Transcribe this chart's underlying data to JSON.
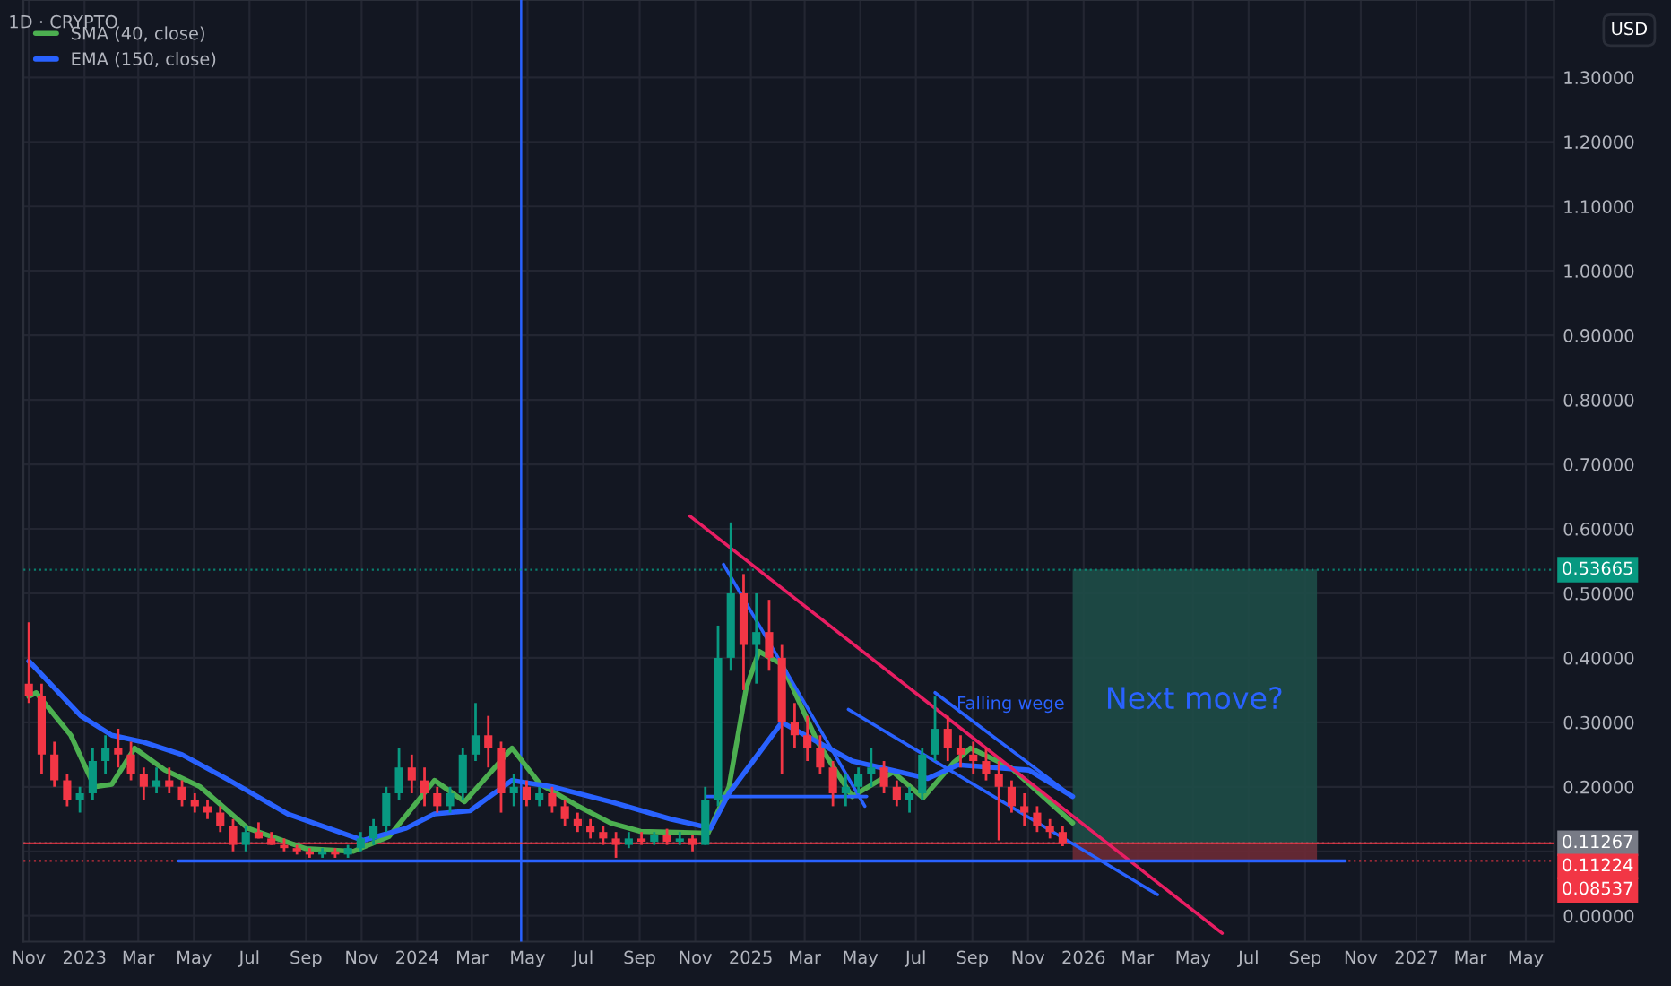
{
  "chart_data": {
    "type": "candlestick",
    "title": "1D · CRYPTO",
    "ylabel": "USD",
    "grid": true,
    "legend": "top left",
    "xlim": [
      "2022-10-26",
      "2027-06-01"
    ],
    "ylim": [
      -0.04,
      1.42
    ],
    "xticks": [
      {
        "value": "2022-11-01",
        "label": "Nov"
      },
      {
        "value": "2023-01-01",
        "label": "2023"
      },
      {
        "value": "2023-03-01",
        "label": "Mar"
      },
      {
        "value": "2023-05-01",
        "label": "May"
      },
      {
        "value": "2023-07-01",
        "label": "Jul"
      },
      {
        "value": "2023-09-01",
        "label": "Sep"
      },
      {
        "value": "2023-11-01",
        "label": "Nov"
      },
      {
        "value": "2024-01-01",
        "label": "2024"
      },
      {
        "value": "2024-03-01",
        "label": "Mar"
      },
      {
        "value": "2024-05-01",
        "label": "May"
      },
      {
        "value": "2024-07-01",
        "label": "Jul"
      },
      {
        "value": "2024-09-01",
        "label": "Sep"
      },
      {
        "value": "2024-11-01",
        "label": "Nov"
      },
      {
        "value": "2025-01-01",
        "label": "2025"
      },
      {
        "value": "2025-03-01",
        "label": "Mar"
      },
      {
        "value": "2025-05-01",
        "label": "May"
      },
      {
        "value": "2025-07-01",
        "label": "Jul"
      },
      {
        "value": "2025-09-01",
        "label": "Sep"
      },
      {
        "value": "2025-11-01",
        "label": "Nov"
      },
      {
        "value": "2026-01-01",
        "label": "2026"
      },
      {
        "value": "2026-03-01",
        "label": "Mar"
      },
      {
        "value": "2026-05-01",
        "label": "May"
      },
      {
        "value": "2026-07-01",
        "label": "Jul"
      },
      {
        "value": "2026-09-01",
        "label": "Sep"
      },
      {
        "value": "2026-11-01",
        "label": "Nov"
      },
      {
        "value": "2027-01-01",
        "label": "2027"
      },
      {
        "value": "2027-03-01",
        "label": "Mar"
      },
      {
        "value": "2027-05-01",
        "label": "May"
      }
    ],
    "yticks": [
      {
        "value": 0,
        "label": "0.00000"
      },
      {
        "value": 0.1,
        "label": null
      },
      {
        "value": 0.2,
        "label": "0.20000"
      },
      {
        "value": 0.3,
        "label": "0.30000"
      },
      {
        "value": 0.4,
        "label": "0.40000"
      },
      {
        "value": 0.5,
        "label": "0.50000"
      },
      {
        "value": 0.6,
        "label": "0.60000"
      },
      {
        "value": 0.7,
        "label": "0.70000"
      },
      {
        "value": 0.8,
        "label": "0.80000"
      },
      {
        "value": 0.9,
        "label": "0.90000"
      },
      {
        "value": 1.0,
        "label": "1.00000"
      },
      {
        "value": 1.1,
        "label": "1.10000"
      },
      {
        "value": 1.2,
        "label": "1.20000"
      },
      {
        "value": 1.3,
        "label": "1.30000"
      }
    ],
    "ref_lines": [
      {
        "axis": "x",
        "value": "2024-04-24",
        "color": "#2962ff"
      },
      {
        "axis": "y",
        "value": 0.53665,
        "label": "0.53665",
        "color": "#089981",
        "line_style": "dotted"
      },
      {
        "axis": "y",
        "value": 0.11267,
        "label": "0.11267",
        "color": "#787b86",
        "line_style": "dotted"
      },
      {
        "axis": "y",
        "value": 0.11224,
        "label": "0.11224",
        "color": "#f23645"
      },
      {
        "axis": "y",
        "value": 0.08537,
        "label": "0.08537",
        "color": "#f23645",
        "line_style": "dotted"
      }
    ],
    "annotations": [
      "Falling wege",
      "Next move?"
    ],
    "series": [
      {
        "x": [
          "2022-11-01",
          "2022-11-15",
          "2022-11-29",
          "2022-12-13",
          "2022-12-27",
          "2023-01-10",
          "2023-01-24",
          "2023-02-07",
          "2023-02-21",
          "2023-03-07",
          "2023-03-21",
          "2023-04-04",
          "2023-04-18",
          "2023-05-02",
          "2023-05-16",
          "2023-05-30",
          "2023-06-13",
          "2023-06-27",
          "2023-07-11",
          "2023-07-25",
          "2023-08-08",
          "2023-08-22",
          "2023-09-05",
          "2023-09-19",
          "2023-10-03",
          "2023-10-17",
          "2023-10-31",
          "2023-11-14",
          "2023-11-28",
          "2023-12-12",
          "2023-12-26",
          "2024-01-09",
          "2024-01-23",
          "2024-02-06",
          "2024-02-20",
          "2024-03-05",
          "2024-03-19",
          "2024-04-02",
          "2024-04-16",
          "2024-04-30",
          "2024-05-14",
          "2024-05-28",
          "2024-06-11",
          "2024-06-25",
          "2024-07-09",
          "2024-07-23",
          "2024-08-06",
          "2024-08-20",
          "2024-09-03",
          "2024-09-17",
          "2024-10-01",
          "2024-10-15",
          "2024-10-29",
          "2024-11-12",
          "2024-11-26",
          "2024-12-10",
          "2024-12-24",
          "2025-01-07",
          "2025-01-21",
          "2025-02-04",
          "2025-02-18",
          "2025-03-04",
          "2025-03-18",
          "2025-04-01",
          "2025-04-15",
          "2025-04-29",
          "2025-05-13",
          "2025-05-27",
          "2025-06-10",
          "2025-06-24",
          "2025-07-08",
          "2025-07-22",
          "2025-08-05",
          "2025-08-19",
          "2025-09-02",
          "2025-09-16",
          "2025-09-30",
          "2025-10-14",
          "2025-10-28",
          "2025-11-11",
          "2025-11-25",
          "2025-12-09"
        ],
        "ohlc": [
          [
            0.36,
            0.455,
            0.33,
            0.34
          ],
          [
            0.34,
            0.36,
            0.22,
            0.25
          ],
          [
            0.25,
            0.27,
            0.2,
            0.21
          ],
          [
            0.21,
            0.22,
            0.17,
            0.18
          ],
          [
            0.18,
            0.2,
            0.16,
            0.19
          ],
          [
            0.19,
            0.26,
            0.18,
            0.24
          ],
          [
            0.24,
            0.28,
            0.22,
            0.26
          ],
          [
            0.26,
            0.29,
            0.23,
            0.25
          ],
          [
            0.25,
            0.27,
            0.21,
            0.22
          ],
          [
            0.22,
            0.23,
            0.18,
            0.2
          ],
          [
            0.2,
            0.23,
            0.19,
            0.21
          ],
          [
            0.21,
            0.23,
            0.19,
            0.2
          ],
          [
            0.2,
            0.21,
            0.17,
            0.18
          ],
          [
            0.18,
            0.19,
            0.16,
            0.17
          ],
          [
            0.17,
            0.18,
            0.15,
            0.16
          ],
          [
            0.16,
            0.17,
            0.13,
            0.14
          ],
          [
            0.14,
            0.15,
            0.1,
            0.11
          ],
          [
            0.11,
            0.14,
            0.1,
            0.13
          ],
          [
            0.13,
            0.145,
            0.12,
            0.12
          ],
          [
            0.12,
            0.13,
            0.11,
            0.11
          ],
          [
            0.11,
            0.12,
            0.1,
            0.105
          ],
          [
            0.105,
            0.11,
            0.095,
            0.1
          ],
          [
            0.1,
            0.105,
            0.09,
            0.095
          ],
          [
            0.095,
            0.105,
            0.09,
            0.1
          ],
          [
            0.1,
            0.105,
            0.09,
            0.095
          ],
          [
            0.095,
            0.11,
            0.09,
            0.105
          ],
          [
            0.105,
            0.13,
            0.1,
            0.12
          ],
          [
            0.12,
            0.15,
            0.11,
            0.14
          ],
          [
            0.14,
            0.2,
            0.13,
            0.19
          ],
          [
            0.19,
            0.26,
            0.18,
            0.23
          ],
          [
            0.23,
            0.25,
            0.19,
            0.21
          ],
          [
            0.21,
            0.23,
            0.17,
            0.19
          ],
          [
            0.19,
            0.2,
            0.16,
            0.17
          ],
          [
            0.17,
            0.2,
            0.16,
            0.19
          ],
          [
            0.19,
            0.26,
            0.18,
            0.25
          ],
          [
            0.25,
            0.33,
            0.24,
            0.28
          ],
          [
            0.28,
            0.31,
            0.23,
            0.26
          ],
          [
            0.26,
            0.27,
            0.16,
            0.19
          ],
          [
            0.19,
            0.22,
            0.17,
            0.2
          ],
          [
            0.2,
            0.21,
            0.17,
            0.18
          ],
          [
            0.18,
            0.2,
            0.17,
            0.19
          ],
          [
            0.19,
            0.2,
            0.16,
            0.17
          ],
          [
            0.17,
            0.18,
            0.14,
            0.15
          ],
          [
            0.15,
            0.16,
            0.13,
            0.14
          ],
          [
            0.14,
            0.15,
            0.12,
            0.13
          ],
          [
            0.13,
            0.14,
            0.11,
            0.12
          ],
          [
            0.12,
            0.13,
            0.09,
            0.11
          ],
          [
            0.11,
            0.13,
            0.105,
            0.12
          ],
          [
            0.12,
            0.13,
            0.11,
            0.115
          ],
          [
            0.115,
            0.13,
            0.11,
            0.125
          ],
          [
            0.125,
            0.135,
            0.11,
            0.115
          ],
          [
            0.115,
            0.13,
            0.11,
            0.12
          ],
          [
            0.12,
            0.125,
            0.1,
            0.11
          ],
          [
            0.11,
            0.2,
            0.11,
            0.18
          ],
          [
            0.18,
            0.45,
            0.17,
            0.4
          ],
          [
            0.4,
            0.61,
            0.38,
            0.5
          ],
          [
            0.5,
            0.53,
            0.35,
            0.42
          ],
          [
            0.42,
            0.5,
            0.36,
            0.44
          ],
          [
            0.44,
            0.49,
            0.38,
            0.4
          ],
          [
            0.4,
            0.42,
            0.22,
            0.3
          ],
          [
            0.3,
            0.33,
            0.26,
            0.28
          ],
          [
            0.28,
            0.31,
            0.24,
            0.26
          ],
          [
            0.26,
            0.28,
            0.22,
            0.23
          ],
          [
            0.23,
            0.24,
            0.17,
            0.19
          ],
          [
            0.19,
            0.22,
            0.17,
            0.2
          ],
          [
            0.2,
            0.23,
            0.19,
            0.22
          ],
          [
            0.22,
            0.26,
            0.2,
            0.23
          ],
          [
            0.23,
            0.24,
            0.19,
            0.2
          ],
          [
            0.2,
            0.21,
            0.17,
            0.18
          ],
          [
            0.18,
            0.2,
            0.16,
            0.19
          ],
          [
            0.19,
            0.26,
            0.18,
            0.25
          ],
          [
            0.25,
            0.34,
            0.24,
            0.29
          ],
          [
            0.29,
            0.31,
            0.24,
            0.26
          ],
          [
            0.26,
            0.28,
            0.23,
            0.25
          ],
          [
            0.25,
            0.27,
            0.22,
            0.24
          ],
          [
            0.24,
            0.26,
            0.21,
            0.22
          ],
          [
            0.22,
            0.24,
            0.117,
            0.2
          ],
          [
            0.2,
            0.21,
            0.16,
            0.17
          ],
          [
            0.17,
            0.19,
            0.14,
            0.16
          ],
          [
            0.16,
            0.17,
            0.13,
            0.14
          ],
          [
            0.14,
            0.15,
            0.12,
            0.13
          ],
          [
            0.13,
            0.14,
            0.108,
            0.11267
          ]
        ],
        "colors": [
          "#f23645",
          "#f23645",
          "#f23645",
          "#f23645",
          "#089981",
          "#089981",
          "#089981",
          "#f23645",
          "#f23645",
          "#f23645",
          "#089981",
          "#f23645",
          "#f23645",
          "#f23645",
          "#f23645",
          "#f23645",
          "#f23645",
          "#089981",
          "#f23645",
          "#f23645",
          "#f23645",
          "#f23645",
          "#f23645",
          "#089981",
          "#f23645",
          "#089981",
          "#089981",
          "#089981",
          "#089981",
          "#089981",
          "#f23645",
          "#f23645",
          "#f23645",
          "#089981",
          "#089981",
          "#089981",
          "#f23645",
          "#f23645",
          "#089981",
          "#f23645",
          "#089981",
          "#f23645",
          "#f23645",
          "#f23645",
          "#f23645",
          "#f23645",
          "#f23645",
          "#089981",
          "#f23645",
          "#089981",
          "#f23645",
          "#089981",
          "#f23645",
          "#089981",
          "#089981",
          "#089981",
          "#f23645",
          "#089981",
          "#f23645",
          "#f23645",
          "#f23645",
          "#f23645",
          "#f23645",
          "#f23645",
          "#089981",
          "#089981",
          "#089981",
          "#f23645",
          "#f23645",
          "#089981",
          "#089981",
          "#089981",
          "#f23645",
          "#f23645",
          "#f23645",
          "#f23645",
          "#f23645",
          "#f23645",
          "#f23645",
          "#f23645",
          "#f23645",
          "#f23645"
        ]
      },
      {
        "type": "line",
        "name": "SMA (40, close)",
        "color": "#4caf50",
        "x": [
          "2022-11-01",
          "2022-11-09",
          "2022-12-17",
          "2023-01-12",
          "2023-01-31",
          "2023-02-25",
          "2023-03-30",
          "2023-05-08",
          "2023-06-29",
          "2023-09-01",
          "2023-10-23",
          "2023-12-01",
          "2024-01-20",
          "2024-02-22",
          "2024-04-14",
          "2024-05-15",
          "2024-06-23",
          "2024-07-31",
          "2024-09-02",
          "2024-11-15",
          "2024-12-08",
          "2024-12-27",
          "2025-01-10",
          "2025-02-04",
          "2025-03-15",
          "2025-04-22",
          "2025-06-06",
          "2025-07-09",
          "2025-08-11",
          "2025-08-30",
          "2025-10-13",
          "2025-12-20"
        ],
        "values": [
          0.34,
          0.346,
          0.28,
          0.2,
          0.204,
          0.26,
          0.226,
          0.2,
          0.136,
          0.104,
          0.1,
          0.123,
          0.21,
          0.177,
          0.26,
          0.204,
          0.172,
          0.144,
          0.131,
          0.128,
          0.2,
          0.354,
          0.41,
          0.39,
          0.27,
          0.185,
          0.223,
          0.183,
          0.237,
          0.26,
          0.23,
          0.144
        ]
      },
      {
        "type": "line",
        "name": "EMA (150, close)",
        "color": "#2962ff",
        "x": [
          "2022-11-01",
          "2022-12-28",
          "2023-01-31",
          "2023-03-05",
          "2023-04-18",
          "2023-06-09",
          "2023-08-12",
          "2023-11-03",
          "2023-12-20",
          "2024-01-20",
          "2024-02-28",
          "2024-04-14",
          "2024-05-28",
          "2024-07-31",
          "2024-10-05",
          "2024-11-18",
          "2024-12-08",
          "2025-01-16",
          "2025-02-04",
          "2025-04-22",
          "2025-07-14",
          "2025-08-16",
          "2025-11-02",
          "2025-12-20"
        ],
        "values": [
          0.395,
          0.31,
          0.28,
          0.27,
          0.25,
          0.21,
          0.158,
          0.117,
          0.136,
          0.158,
          0.163,
          0.21,
          0.2,
          0.177,
          0.15,
          0.136,
          0.19,
          0.264,
          0.3,
          0.24,
          0.213,
          0.234,
          0.226,
          0.185
        ]
      },
      {
        "type": "line",
        "color": "#e91e63",
        "x": [
          "2024-10-26",
          "2026-06-02"
        ],
        "values": [
          0.62,
          -0.027
        ]
      },
      {
        "type": "line",
        "color": "#2962ff",
        "x": [
          "2025-07-22",
          "2025-12-20"
        ],
        "values": [
          0.346,
          0.185
        ]
      },
      {
        "type": "line",
        "color": "#2962ff",
        "x": [
          "2025-04-18",
          "2026-03-23"
        ],
        "values": [
          0.32,
          0.033
        ]
      },
      {
        "type": "line",
        "color": "#2962ff",
        "x": [
          "2024-12-02",
          "2025-05-06"
        ],
        "values": [
          0.545,
          0.17
        ]
      },
      {
        "type": "line",
        "color": "#2962ff",
        "x": [
          "2024-11-13",
          "2025-05-08"
        ],
        "values": [
          0.185,
          0.185
        ]
      },
      {
        "type": "line",
        "color": "#2962ff",
        "x": [
          "2023-04-14",
          "2026-10-15"
        ],
        "values": [
          0.085,
          0.085
        ]
      },
      {
        "type": "bar",
        "color": "#1e4d47",
        "x": [
          "2026-05-03"
        ],
        "values": [
          0.425
        ],
        "base": [
          0.112
        ]
      },
      {
        "type": "bar",
        "color": "#6b2a35",
        "x": [
          "2026-05-03"
        ],
        "values": [
          0.027
        ],
        "base": [
          0.085
        ]
      }
    ]
  }
}
